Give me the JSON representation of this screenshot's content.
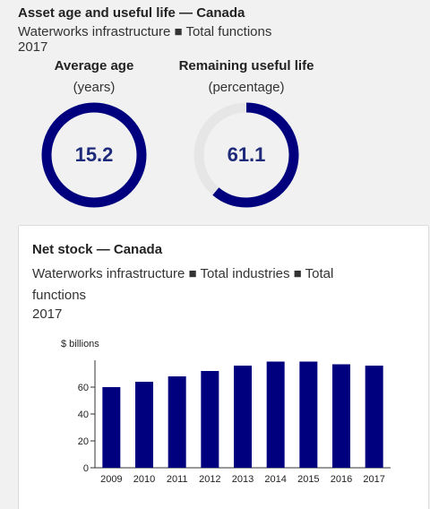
{
  "header": {
    "title": "Asset age and useful life — Canada",
    "subtitle": "Waterworks infrastructure ■ Total functions",
    "year": "2017"
  },
  "gauges": [
    {
      "title": "Average age",
      "unit": "(years)",
      "value": "15.2",
      "fraction": 1.0
    },
    {
      "title": "Remaining useful life",
      "unit": "(percentage)",
      "value": "61.1",
      "fraction": 0.611
    }
  ],
  "colors": {
    "accent": "#00007f",
    "track": "#e6e6e6",
    "value_text": "#1e2a7a"
  },
  "card": {
    "title": "Net stock — Canada",
    "subtitle": "Waterworks infrastructure ■ Total industries ■ Total functions",
    "year": "2017"
  },
  "chart_data": {
    "type": "bar",
    "ylabel": "$ billions",
    "categories": [
      "2009",
      "2010",
      "2011",
      "2012",
      "2013",
      "2014",
      "2015",
      "2016",
      "2017"
    ],
    "values": [
      60,
      64,
      68,
      72,
      76,
      79,
      79,
      77,
      76
    ],
    "ylim": [
      0,
      80
    ],
    "yticks": [
      0,
      20,
      40,
      60
    ],
    "grid": false
  }
}
